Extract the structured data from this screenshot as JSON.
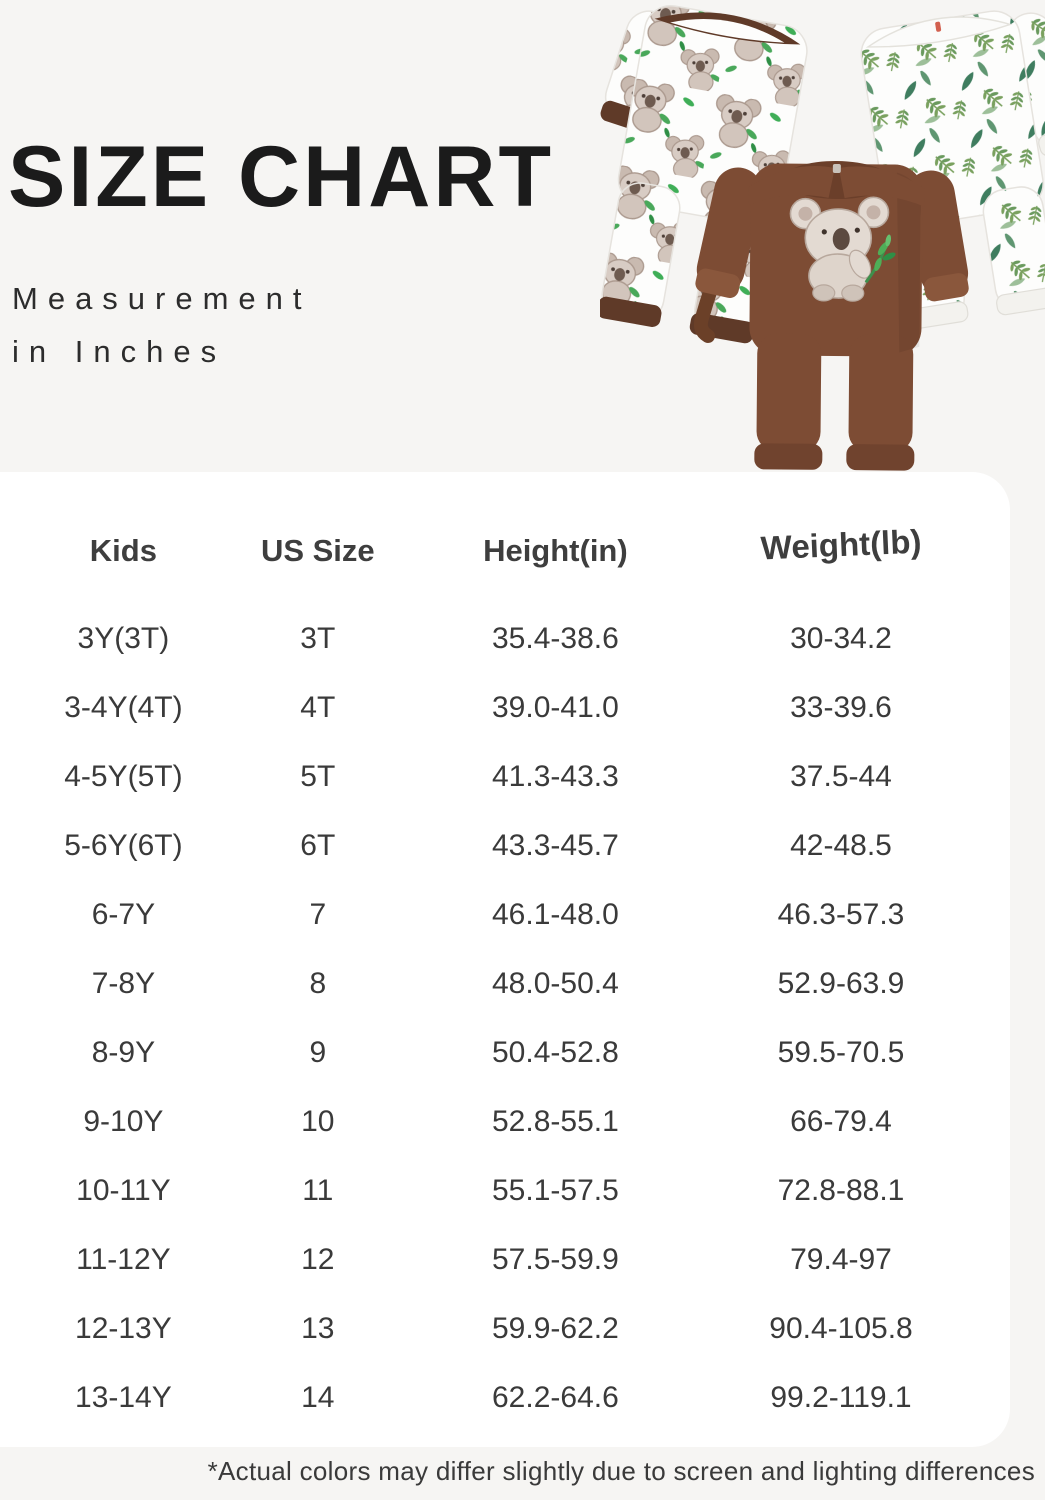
{
  "header": {
    "title": "SIZE CHART",
    "subtitle_line1": "Measurement",
    "subtitle_line2": "in Inches"
  },
  "photo": {
    "items": [
      {
        "name": "koala-print-romper",
        "base_color": "#fdfdfc",
        "trim_color": "#5f3a28"
      },
      {
        "name": "brown-koala-romper",
        "base_color": "#7d4c34",
        "cuff_color": "#8a573c"
      },
      {
        "name": "leaf-print-romper",
        "base_color": "#fdfdfc",
        "leaf_color": "#3f7d5f"
      }
    ],
    "accent_greens": [
      "#49a85a",
      "#5f9671",
      "#9dbf99",
      "#7aa15f"
    ],
    "koala_color": "#e3dad2"
  },
  "chart_data": {
    "type": "table",
    "title": "SIZE CHART",
    "columns": [
      "Kids",
      "US Size",
      "Height(in)",
      "Weight(lb)"
    ],
    "rows": [
      [
        "3Y(3T)",
        "3T",
        "35.4-38.6",
        "30-34.2"
      ],
      [
        "3-4Y(4T)",
        "4T",
        "39.0-41.0",
        "33-39.6"
      ],
      [
        "4-5Y(5T)",
        "5T",
        "41.3-43.3",
        "37.5-44"
      ],
      [
        "5-6Y(6T)",
        "6T",
        "43.3-45.7",
        "42-48.5"
      ],
      [
        "6-7Y",
        "7",
        "46.1-48.0",
        "46.3-57.3"
      ],
      [
        "7-8Y",
        "8",
        "48.0-50.4",
        "52.9-63.9"
      ],
      [
        "8-9Y",
        "9",
        "50.4-52.8",
        "59.5-70.5"
      ],
      [
        "9-10Y",
        "10",
        "52.8-55.1",
        "66-79.4"
      ],
      [
        "10-11Y",
        "11",
        "55.1-57.5",
        "72.8-88.1"
      ],
      [
        "11-12Y",
        "12",
        "57.5-59.9",
        "79.4-97"
      ],
      [
        "12-13Y",
        "13",
        "59.9-62.2",
        "90.4-105.8"
      ],
      [
        "13-14Y",
        "14",
        "62.2-64.6",
        "99.2-119.1"
      ]
    ],
    "layout": {
      "grid": false,
      "column_alignment": "center"
    }
  },
  "footer": {
    "note": "*Actual colors may differ slightly due to screen and lighting differences"
  },
  "colors": {
    "page_background": "#f6f5f3",
    "card_background": "#ffffff",
    "title_text": "#1b1b1b",
    "body_text": "#3a3a3a"
  }
}
